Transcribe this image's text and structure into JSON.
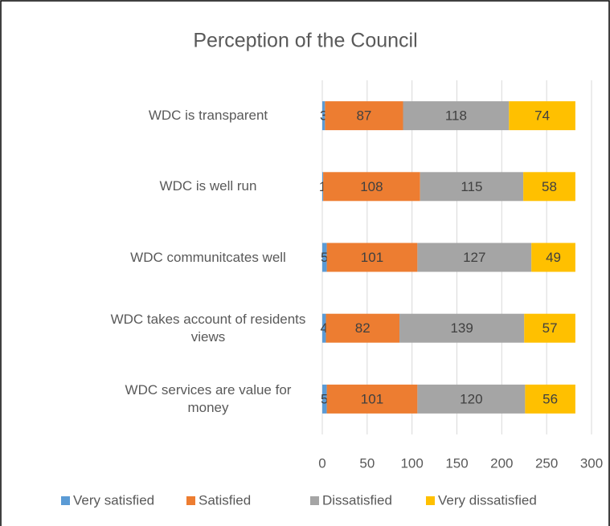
{
  "chart_data": {
    "type": "stacked-bar-horizontal",
    "title": "Perception of the Council",
    "categories": [
      "WDC is transparent",
      "WDC is well run",
      "WDC communitcates well",
      "WDC takes account of residents views",
      "WDC services are value for money"
    ],
    "series": [
      {
        "name": "Very satisfied",
        "color": "#5b9bd5",
        "values": [
          3,
          1,
          5,
          4,
          5
        ]
      },
      {
        "name": "Satisfied",
        "color": "#ed7d31",
        "values": [
          87,
          108,
          101,
          82,
          101
        ]
      },
      {
        "name": "Dissatisfied",
        "color": "#a5a5a5",
        "values": [
          118,
          115,
          127,
          139,
          120
        ]
      },
      {
        "name": "Very dissatisfied",
        "color": "#ffc000",
        "values": [
          74,
          58,
          49,
          57,
          56
        ]
      }
    ],
    "xlim": [
      0,
      300
    ],
    "xticks": [
      0,
      50,
      100,
      150,
      200,
      250,
      300
    ],
    "grid": true,
    "legend": "bottom"
  }
}
